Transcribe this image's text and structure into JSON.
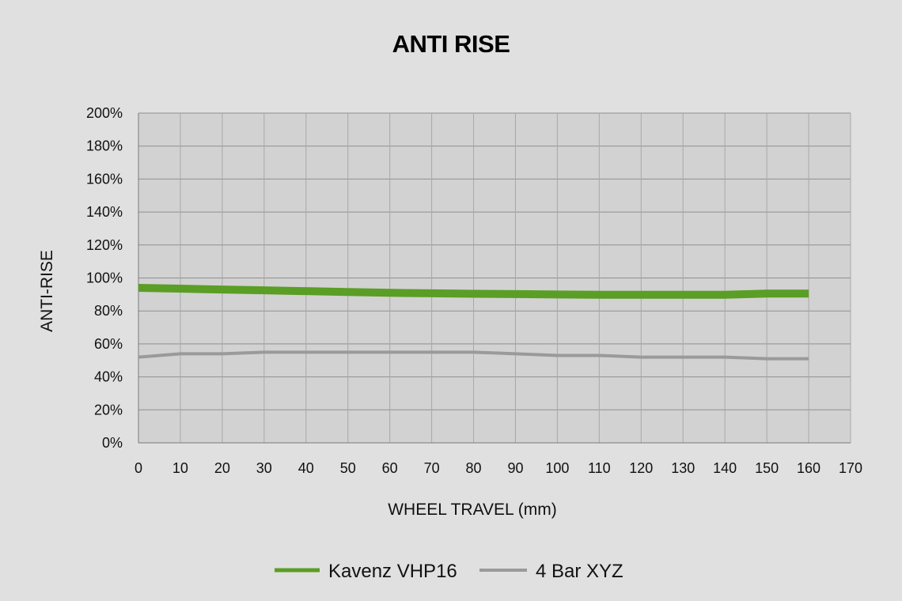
{
  "chart_data": {
    "type": "line",
    "title": "ANTI RISE",
    "xlabel": "WHEEL TRAVEL (mm)",
    "ylabel": "ANTI-RISE",
    "xlim": [
      0,
      170
    ],
    "ylim": [
      0,
      200
    ],
    "x_ticks": [
      0,
      10,
      20,
      30,
      40,
      50,
      60,
      70,
      80,
      90,
      100,
      110,
      120,
      130,
      140,
      150,
      160,
      170
    ],
    "y_ticks": [
      "0%",
      "20%",
      "40%",
      "60%",
      "80%",
      "100%",
      "120%",
      "140%",
      "160%",
      "180%",
      "200%"
    ],
    "y_tick_values": [
      0,
      20,
      40,
      60,
      80,
      100,
      120,
      140,
      160,
      180,
      200
    ],
    "grid": true,
    "legend_position": "bottom",
    "x": [
      0,
      10,
      20,
      30,
      40,
      50,
      60,
      70,
      80,
      90,
      100,
      110,
      120,
      130,
      140,
      150,
      160
    ],
    "series": [
      {
        "name": "Kavenz VHP16",
        "color": "#5a9e25",
        "values": [
          94,
          93.5,
          93,
          92.5,
          92,
          91.5,
          91,
          90.7,
          90.4,
          90.2,
          90,
          89.8,
          89.8,
          89.8,
          89.8,
          90.5,
          90.5
        ]
      },
      {
        "name": "4 Bar XYZ",
        "color": "#9a9a9a",
        "values": [
          52,
          54,
          54,
          55,
          55,
          55,
          55,
          55,
          55,
          54,
          53,
          53,
          52,
          52,
          52,
          51,
          51
        ]
      }
    ]
  }
}
